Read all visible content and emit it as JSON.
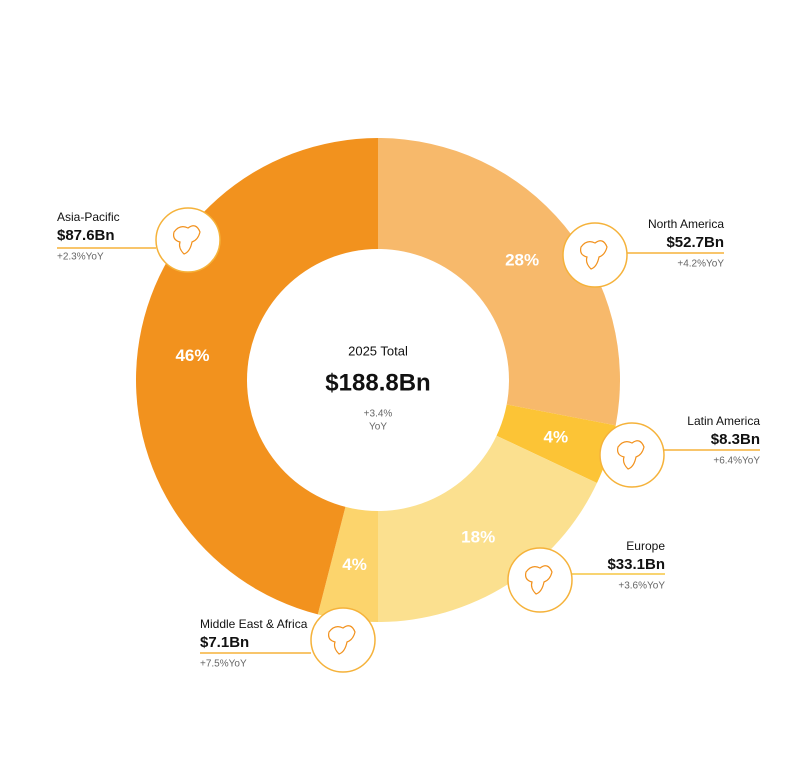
{
  "chart_data": {
    "type": "donut",
    "center_title": "2025 Total",
    "center_value": "$188.8Bn",
    "center_change": "+3.4%",
    "center_change_unit": "YoY",
    "categories": [
      "North America",
      "Latin America",
      "Europe",
      "Middle East & Africa",
      "Asia-Pacific"
    ],
    "values": [
      28,
      4,
      18,
      4,
      46
    ],
    "value_labels": [
      "28%",
      "4%",
      "18%",
      "4%",
      "46%"
    ],
    "amounts": [
      "$52.7Bn",
      "$8.3Bn",
      "$33.1Bn",
      "$7.1Bn",
      "$87.6Bn"
    ],
    "changes": [
      "+4.2%YoY",
      "+6.4%YoY",
      "+3.6%YoY",
      "+7.5%YoY",
      "+2.3%YoY"
    ],
    "colors": [
      "#f7b96b",
      "#fcc436",
      "#fbe08f",
      "#fcd46c",
      "#f2921e"
    ]
  }
}
